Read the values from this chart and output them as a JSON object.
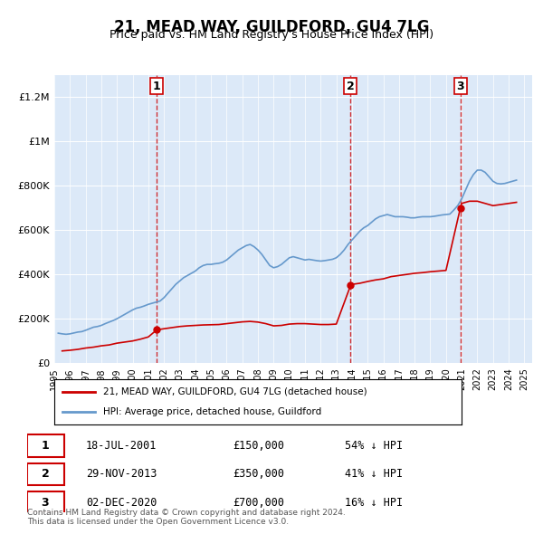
{
  "title": "21, MEAD WAY, GUILDFORD, GU4 7LG",
  "subtitle": "Price paid vs. HM Land Registry's House Price Index (HPI)",
  "ylabel_ticks": [
    "£0",
    "£200K",
    "£400K",
    "£600K",
    "£800K",
    "£1M",
    "£1.2M"
  ],
  "ylabel_values": [
    0,
    200000,
    400000,
    600000,
    800000,
    1000000,
    1200000
  ],
  "ylim": [
    0,
    1300000
  ],
  "xlim_start": 1995.0,
  "xlim_end": 2025.5,
  "x_ticks": [
    1995,
    1996,
    1997,
    1998,
    1999,
    2000,
    2001,
    2002,
    2003,
    2004,
    2005,
    2006,
    2007,
    2008,
    2009,
    2010,
    2011,
    2012,
    2013,
    2014,
    2015,
    2016,
    2017,
    2018,
    2019,
    2020,
    2021,
    2022,
    2023,
    2024,
    2025
  ],
  "bg_color": "#dce9f8",
  "plot_bg_color": "#dce9f8",
  "outer_bg_color": "#ffffff",
  "red_line_color": "#cc0000",
  "blue_line_color": "#6699cc",
  "vline_color": "#cc0000",
  "transactions": [
    {
      "date": "18-JUL-2001",
      "x": 2001.54,
      "price": 150000,
      "label": "1",
      "pct": "54%",
      "dir": "↓"
    },
    {
      "date": "29-NOV-2013",
      "x": 2013.91,
      "price": 350000,
      "label": "2",
      "pct": "41%",
      "dir": "↓"
    },
    {
      "date": "02-DEC-2020",
      "x": 2020.92,
      "price": 700000,
      "label": "3",
      "pct": "16%",
      "dir": "↓"
    }
  ],
  "legend_label_red": "21, MEAD WAY, GUILDFORD, GU4 7LG (detached house)",
  "legend_label_blue": "HPI: Average price, detached house, Guildford",
  "footer": "Contains HM Land Registry data © Crown copyright and database right 2024.\nThis data is licensed under the Open Government Licence v3.0.",
  "hpi_data": {
    "years": [
      1995.25,
      1995.5,
      1995.75,
      1996.0,
      1996.25,
      1996.5,
      1996.75,
      1997.0,
      1997.25,
      1997.5,
      1997.75,
      1998.0,
      1998.25,
      1998.5,
      1998.75,
      1999.0,
      1999.25,
      1999.5,
      1999.75,
      2000.0,
      2000.25,
      2000.5,
      2000.75,
      2001.0,
      2001.25,
      2001.5,
      2001.75,
      2002.0,
      2002.25,
      2002.5,
      2002.75,
      2003.0,
      2003.25,
      2003.5,
      2003.75,
      2004.0,
      2004.25,
      2004.5,
      2004.75,
      2005.0,
      2005.25,
      2005.5,
      2005.75,
      2006.0,
      2006.25,
      2006.5,
      2006.75,
      2007.0,
      2007.25,
      2007.5,
      2007.75,
      2008.0,
      2008.25,
      2008.5,
      2008.75,
      2009.0,
      2009.25,
      2009.5,
      2009.75,
      2010.0,
      2010.25,
      2010.5,
      2010.75,
      2011.0,
      2011.25,
      2011.5,
      2011.75,
      2012.0,
      2012.25,
      2012.5,
      2012.75,
      2013.0,
      2013.25,
      2013.5,
      2013.75,
      2014.0,
      2014.25,
      2014.5,
      2014.75,
      2015.0,
      2015.25,
      2015.5,
      2015.75,
      2016.0,
      2016.25,
      2016.5,
      2016.75,
      2017.0,
      2017.25,
      2017.5,
      2017.75,
      2018.0,
      2018.25,
      2018.5,
      2018.75,
      2019.0,
      2019.25,
      2019.5,
      2019.75,
      2020.0,
      2020.25,
      2020.5,
      2020.75,
      2021.0,
      2021.25,
      2021.5,
      2021.75,
      2022.0,
      2022.25,
      2022.5,
      2022.75,
      2023.0,
      2023.25,
      2023.5,
      2023.75,
      2024.0,
      2024.25,
      2024.5
    ],
    "values": [
      135000,
      132000,
      130000,
      132000,
      136000,
      140000,
      142000,
      148000,
      155000,
      162000,
      165000,
      170000,
      178000,
      185000,
      192000,
      200000,
      210000,
      220000,
      230000,
      240000,
      248000,
      252000,
      258000,
      265000,
      270000,
      275000,
      280000,
      295000,
      315000,
      335000,
      355000,
      370000,
      385000,
      395000,
      405000,
      415000,
      430000,
      440000,
      445000,
      445000,
      448000,
      450000,
      455000,
      465000,
      480000,
      495000,
      510000,
      520000,
      530000,
      535000,
      525000,
      510000,
      490000,
      465000,
      440000,
      430000,
      435000,
      445000,
      460000,
      475000,
      480000,
      475000,
      470000,
      465000,
      468000,
      465000,
      462000,
      460000,
      462000,
      465000,
      468000,
      475000,
      490000,
      510000,
      535000,
      555000,
      575000,
      595000,
      610000,
      620000,
      635000,
      650000,
      660000,
      665000,
      670000,
      665000,
      660000,
      660000,
      660000,
      658000,
      655000,
      655000,
      658000,
      660000,
      660000,
      660000,
      662000,
      665000,
      668000,
      670000,
      672000,
      690000,
      710000,
      740000,
      780000,
      820000,
      850000,
      870000,
      870000,
      860000,
      840000,
      820000,
      810000,
      808000,
      810000,
      815000,
      820000,
      825000
    ]
  },
  "price_paid_data": {
    "years": [
      1995.5,
      1996.0,
      1996.5,
      1997.0,
      1997.5,
      1998.0,
      1998.5,
      1999.0,
      1999.5,
      2000.0,
      2000.5,
      2001.0,
      2001.54,
      2002.0,
      2002.5,
      2003.0,
      2003.5,
      2004.0,
      2004.5,
      2005.0,
      2005.5,
      2006.0,
      2006.5,
      2007.0,
      2007.5,
      2008.0,
      2008.5,
      2009.0,
      2009.5,
      2010.0,
      2010.5,
      2011.0,
      2011.5,
      2012.0,
      2012.5,
      2013.0,
      2013.91,
      2014.0,
      2014.5,
      2015.0,
      2015.5,
      2016.0,
      2016.5,
      2017.0,
      2017.5,
      2018.0,
      2018.5,
      2019.0,
      2019.5,
      2020.0,
      2020.92,
      2021.0,
      2021.5,
      2022.0,
      2022.5,
      2023.0,
      2023.5,
      2024.0,
      2024.5
    ],
    "values": [
      55000,
      58000,
      62000,
      68000,
      72000,
      78000,
      82000,
      90000,
      95000,
      100000,
      108000,
      118000,
      150000,
      155000,
      160000,
      165000,
      168000,
      170000,
      172000,
      173000,
      174000,
      178000,
      182000,
      186000,
      188000,
      185000,
      178000,
      168000,
      170000,
      176000,
      178000,
      178000,
      176000,
      174000,
      174000,
      176000,
      350000,
      355000,
      360000,
      368000,
      375000,
      380000,
      390000,
      395000,
      400000,
      405000,
      408000,
      412000,
      415000,
      418000,
      700000,
      720000,
      730000,
      730000,
      720000,
      710000,
      715000,
      720000,
      725000
    ]
  }
}
